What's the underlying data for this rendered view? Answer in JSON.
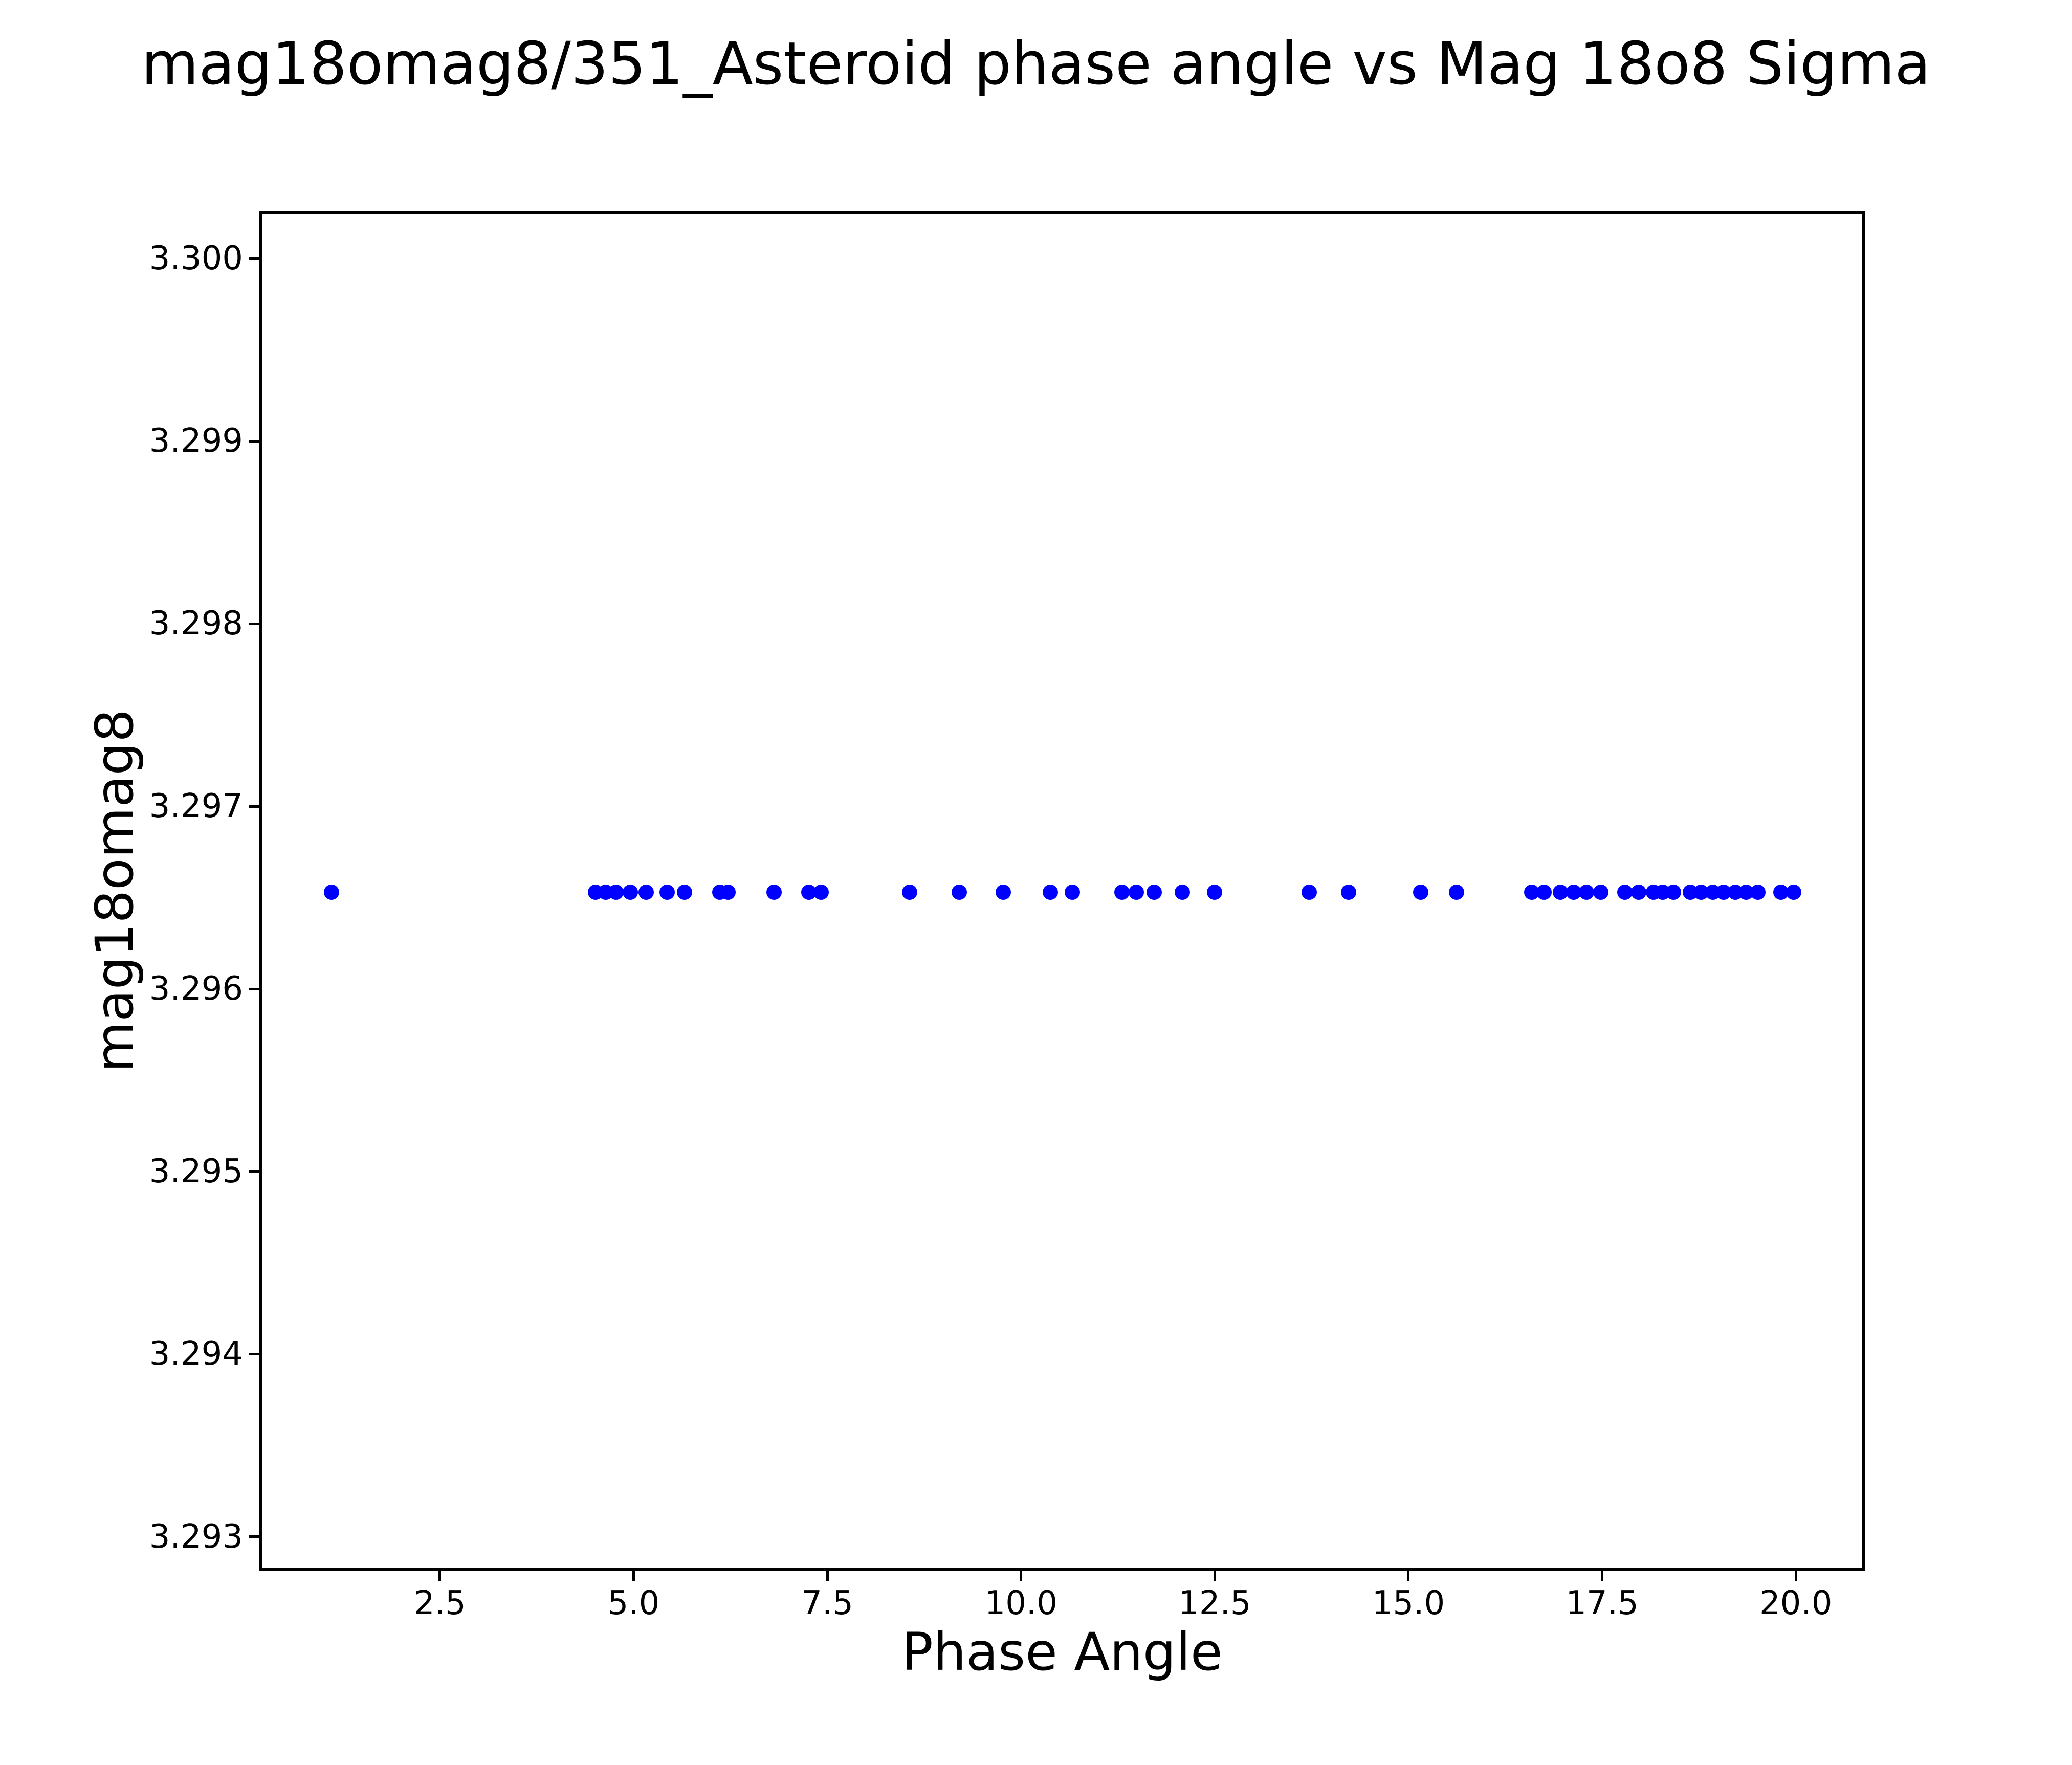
{
  "chart_data": {
    "type": "scatter",
    "title": "mag18omag8/351_Asteroid phase angle vs Mag 18o8 Sigma",
    "xlabel": "Phase Angle",
    "ylabel": "mag18omag8",
    "marker_color": "#0000ff",
    "marker_shape": "circle",
    "grid": "off",
    "legend": "off",
    "xlim": [
      0.17,
      20.89
    ],
    "ylim": [
      3.292815,
      3.300258
    ],
    "xticks": {
      "values": [
        2.5,
        5.0,
        7.5,
        10.0,
        12.5,
        15.0,
        17.5,
        20.0
      ],
      "labels": [
        "2.5",
        "5.0",
        "7.5",
        "10.0",
        "12.5",
        "15.0",
        "17.5",
        "20.0"
      ]
    },
    "yticks": {
      "values": [
        3.293,
        3.294,
        3.295,
        3.296,
        3.297,
        3.298,
        3.299,
        3.3
      ],
      "labels": [
        "3.293",
        "3.294",
        "3.295",
        "3.296",
        "3.297",
        "3.298",
        "3.299",
        "3.300"
      ]
    },
    "series": [
      {
        "name": "mag18omag8",
        "y_value": 3.29653,
        "x": [
          1.1,
          4.51,
          4.64,
          4.77,
          4.96,
          5.16,
          5.43,
          5.66,
          6.11,
          6.22,
          6.81,
          7.26,
          7.42,
          8.56,
          9.2,
          9.77,
          10.38,
          10.66,
          11.3,
          11.49,
          11.72,
          12.08,
          12.5,
          13.72,
          14.23,
          15.16,
          15.62,
          16.59,
          16.75,
          16.96,
          17.13,
          17.3,
          17.48,
          17.79,
          17.97,
          18.16,
          18.28,
          18.42,
          18.64,
          18.78,
          18.93,
          19.07,
          19.22,
          19.36,
          19.51,
          19.81,
          19.97
        ]
      }
    ]
  }
}
